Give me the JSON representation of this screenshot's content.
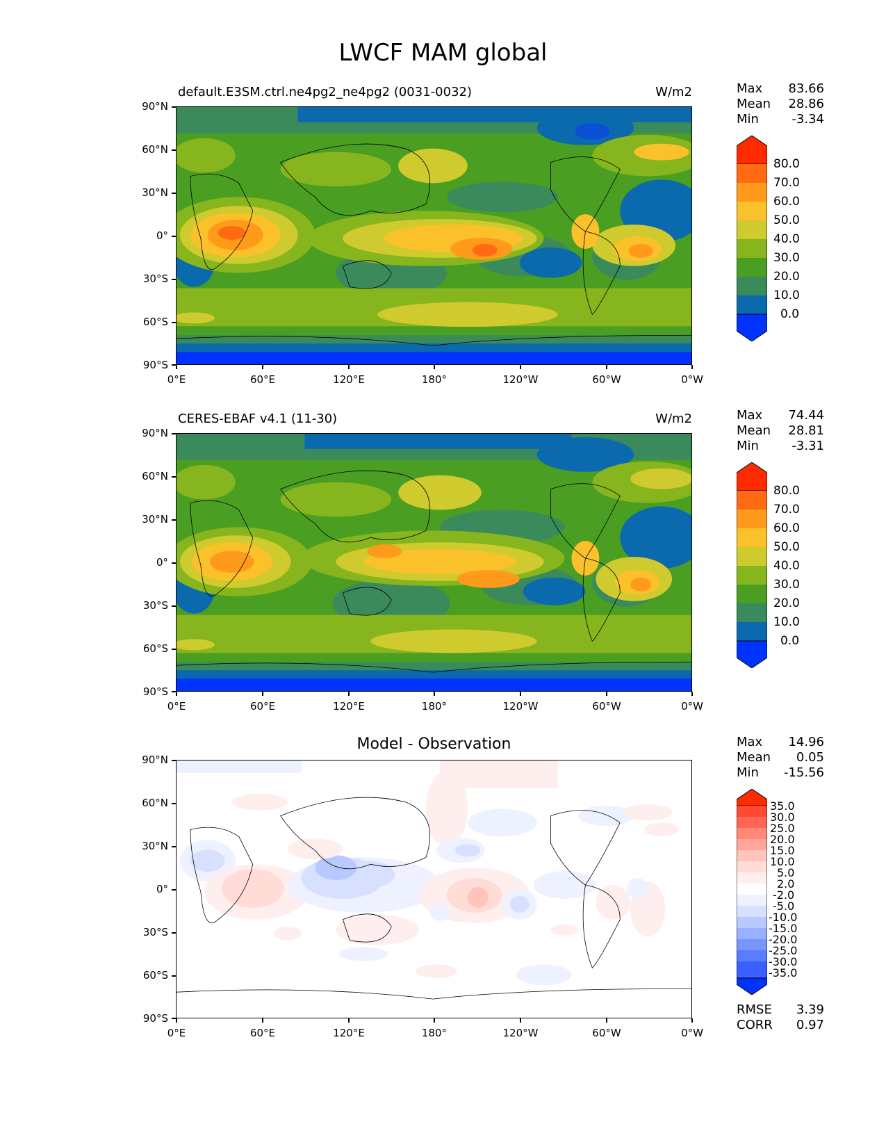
{
  "figure_title": "LWCF MAM global",
  "lat_labels": [
    "90°N",
    "60°N",
    "30°N",
    "0°",
    "30°S",
    "60°S",
    "90°S"
  ],
  "lon_labels": [
    "0°E",
    "60°E",
    "120°E",
    "180°",
    "120°W",
    "60°W",
    "0°W"
  ],
  "panels": [
    {
      "left_title": "default.E3SM.ctrl.ne4pg2_ne4pg2 (0031-0032)",
      "center_title": "",
      "units": "W/m2",
      "stats": {
        "max_label": "Max",
        "max": "83.66",
        "mean_label": "Mean",
        "mean": "28.86",
        "min_label": "Min",
        "min": "-3.34"
      },
      "colorbar": {
        "labels": [
          "80.0",
          "70.0",
          "60.0",
          "50.0",
          "40.0",
          "30.0",
          "20.0",
          "10.0",
          "0.0"
        ],
        "colors": [
          "#ff2a00",
          "#ff6a12",
          "#ff9a1a",
          "#fbc12b",
          "#cfcb2f",
          "#87b51d",
          "#4a9e22",
          "#3b8a5c",
          "#0a6aad",
          "#0033ff"
        ]
      }
    },
    {
      "left_title": "CERES-EBAF v4.1 (11-30)",
      "center_title": "",
      "units": "W/m2",
      "stats": {
        "max_label": "Max",
        "max": "74.44",
        "mean_label": "Mean",
        "mean": "28.81",
        "min_label": "Min",
        "min": "-3.31"
      },
      "colorbar": {
        "labels": [
          "80.0",
          "70.0",
          "60.0",
          "50.0",
          "40.0",
          "30.0",
          "20.0",
          "10.0",
          "0.0"
        ],
        "colors": [
          "#ff2a00",
          "#ff6a12",
          "#ff9a1a",
          "#fbc12b",
          "#cfcb2f",
          "#87b51d",
          "#4a9e22",
          "#3b8a5c",
          "#0a6aad",
          "#0033ff"
        ]
      }
    },
    {
      "left_title": "",
      "center_title": "Model - Observation",
      "units": "",
      "stats": {
        "max_label": "Max",
        "max": "14.96",
        "mean_label": "Mean",
        "mean": "0.05",
        "min_label": "Min",
        "min": "-15.56"
      },
      "colorbar": {
        "labels": [
          "35.0",
          "30.0",
          "25.0",
          "20.0",
          "15.0",
          "10.0",
          "5.0",
          "2.0",
          "-2.0",
          "-5.0",
          "-10.0",
          "-15.0",
          "-20.0",
          "-25.0",
          "-30.0",
          "-35.0"
        ],
        "colors": [
          "#ff2a00",
          "#ff4a33",
          "#ff6655",
          "#ff8877",
          "#ffa599",
          "#ffc4bb",
          "#ffdcd6",
          "#ffeeee",
          "#ffffff",
          "#eef1ff",
          "#d8e0ff",
          "#b9c8ff",
          "#9aafff",
          "#7b95ff",
          "#5a7cff",
          "#3a5eff",
          "#0033ff"
        ]
      },
      "rmse_label": "RMSE",
      "rmse": "3.39",
      "corr_label": "CORR",
      "corr": "0.97"
    }
  ]
}
